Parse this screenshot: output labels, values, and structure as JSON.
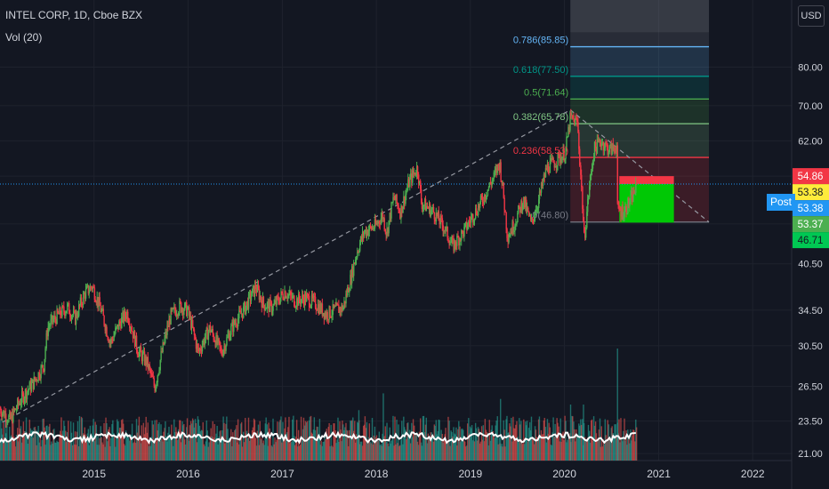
{
  "header": {
    "symbol_line": "INTEL CORP, 1D, Cboe BZX",
    "volume_line": "Vol (20)",
    "currency_button": "USD"
  },
  "post_label": "Post",
  "colors": {
    "background": "#131722",
    "up": "#26a69a",
    "down": "#ef5350",
    "candle_up": "#4caf50",
    "candle_down": "#f23645",
    "volume_ma": "#ffffff",
    "trendline": "#9598a1",
    "fib_0": "#787b86",
    "fib_0236": "#f23645",
    "fib_0382": "#81c784",
    "fib_05": "#4caf50",
    "fib_0618": "#009688",
    "fib_0786": "#64b5f6"
  },
  "fib_levels": [
    {
      "label": "0(46.80)",
      "value": 46.8,
      "color": "#787b86"
    },
    {
      "label": "0.236(58.53)",
      "value": 58.53,
      "color": "#f23645"
    },
    {
      "label": "0.382(65.78)",
      "value": 65.78,
      "color": "#81c784"
    },
    {
      "label": "0.5(71.64)",
      "value": 71.64,
      "color": "#4caf50"
    },
    {
      "label": "0.618(77.50)",
      "value": 77.5,
      "color": "#009688"
    },
    {
      "label": "0.786(85.85)",
      "value": 85.85,
      "color": "#64b5f6"
    }
  ],
  "price_tags": [
    {
      "label": "54.86",
      "value": 54.86,
      "bg": "#f23645",
      "fg": "#ffffff"
    },
    {
      "label": "53.38",
      "value": 53.38,
      "bg": "#ffeb3b",
      "fg": "#131722"
    },
    {
      "label": "53.38",
      "value": 53.38,
      "bg": "#2196f3",
      "fg": "#ffffff",
      "post": true
    },
    {
      "label": "53.37",
      "value": 53.37,
      "bg": "#4caf50",
      "fg": "#ffffff"
    },
    {
      "label": "46.71",
      "value": 46.71,
      "bg": "#00c853",
      "fg": "#131722"
    }
  ],
  "position_box": {
    "entry": 53.38,
    "stop": 54.86,
    "target": 46.71,
    "start": "2020-08-01",
    "end": "2021-03-01"
  },
  "chart_data": {
    "type": "candlestick",
    "title": "INTEL CORP, 1D, Cboe BZX",
    "y_scale": "log",
    "ylim": [
      20.5,
      100
    ],
    "y_ticks": [
      {
        "value": 80,
        "label": "80.00"
      },
      {
        "value": 70,
        "label": "70.00"
      },
      {
        "value": 62,
        "label": "62.00"
      },
      {
        "value": 54.86,
        "label": "54.86"
      },
      {
        "value": 46.5,
        "label": "46.50"
      },
      {
        "value": 40.5,
        "label": "40.50"
      },
      {
        "value": 34.5,
        "label": "34.50"
      },
      {
        "value": 30.5,
        "label": "30.50"
      },
      {
        "value": 26.5,
        "label": "26.50"
      },
      {
        "value": 23.5,
        "label": "23.50"
      },
      {
        "value": 21,
        "label": "21.00"
      }
    ],
    "x_ticks": [
      "2015",
      "2016",
      "2017",
      "2018",
      "2019",
      "2020",
      "2021",
      "2022"
    ],
    "x_range": [
      "2014-01-01",
      "2022-06-01"
    ],
    "last_date": "2020-10-10",
    "price_series": [
      [
        "2014-01-01",
        24.5
      ],
      [
        "2014-02-10",
        23.6
      ],
      [
        "2014-03-25",
        25.4
      ],
      [
        "2014-05-10",
        26.8
      ],
      [
        "2014-06-20",
        28.5
      ],
      [
        "2014-07-05",
        32.5
      ],
      [
        "2014-08-10",
        33.8
      ],
      [
        "2014-09-20",
        34.8
      ],
      [
        "2014-10-20",
        33.5
      ],
      [
        "2014-11-25",
        36.5
      ],
      [
        "2014-12-25",
        37.5
      ],
      [
        "2015-01-25",
        34.8
      ],
      [
        "2015-03-05",
        30.8
      ],
      [
        "2015-04-15",
        33.2
      ],
      [
        "2015-05-10",
        34.2
      ],
      [
        "2015-06-20",
        30.0
      ],
      [
        "2015-07-25",
        28.8
      ],
      [
        "2015-08-25",
        26.4
      ],
      [
        "2015-09-20",
        29.6
      ],
      [
        "2015-10-25",
        33.8
      ],
      [
        "2015-12-01",
        35.0
      ],
      [
        "2015-12-30",
        34.5
      ],
      [
        "2016-02-10",
        29.8
      ],
      [
        "2016-03-25",
        32.4
      ],
      [
        "2016-05-10",
        29.8
      ],
      [
        "2016-06-20",
        32.5
      ],
      [
        "2016-08-10",
        34.8
      ],
      [
        "2016-09-20",
        37.4
      ],
      [
        "2016-10-20",
        35.2
      ],
      [
        "2016-11-25",
        34.8
      ],
      [
        "2017-01-10",
        36.8
      ],
      [
        "2017-02-20",
        35.6
      ],
      [
        "2017-04-01",
        36.0
      ],
      [
        "2017-05-10",
        35.3
      ],
      [
        "2017-06-20",
        34.0
      ],
      [
        "2017-07-25",
        34.5
      ],
      [
        "2017-08-25",
        34.8
      ],
      [
        "2017-09-20",
        38.0
      ],
      [
        "2017-10-20",
        42.5
      ],
      [
        "2017-11-15",
        45.2
      ],
      [
        "2017-12-30",
        46.2
      ],
      [
        "2018-01-25",
        48.0
      ],
      [
        "2018-02-10",
        45.0
      ],
      [
        "2018-03-10",
        51.0
      ],
      [
        "2018-04-05",
        48.5
      ],
      [
        "2018-05-10",
        54.0
      ],
      [
        "2018-06-10",
        56.5
      ],
      [
        "2018-06-25",
        50.0
      ],
      [
        "2018-08-10",
        48.5
      ],
      [
        "2018-09-20",
        46.0
      ],
      [
        "2018-10-25",
        43.0
      ],
      [
        "2018-12-10",
        45.5
      ],
      [
        "2018-12-28",
        46.8
      ],
      [
        "2019-02-10",
        50.0
      ],
      [
        "2019-04-01",
        54.5
      ],
      [
        "2019-04-25",
        57.5
      ],
      [
        "2019-05-25",
        44.5
      ],
      [
        "2019-06-20",
        46.5
      ],
      [
        "2019-07-25",
        50.5
      ],
      [
        "2019-08-25",
        46.5
      ],
      [
        "2019-09-25",
        50.8
      ],
      [
        "2019-10-25",
        56.5
      ],
      [
        "2019-12-05",
        58.0
      ],
      [
        "2020-01-05",
        59.5
      ],
      [
        "2020-01-24",
        67.0
      ],
      [
        "2020-02-20",
        66.0
      ],
      [
        "2020-03-18",
        44.0
      ],
      [
        "2020-04-05",
        52.0
      ],
      [
        "2020-04-25",
        60.0
      ],
      [
        "2020-05-20",
        62.0
      ],
      [
        "2020-06-25",
        60.0
      ],
      [
        "2020-07-22",
        61.0
      ],
      [
        "2020-07-25",
        48.8
      ],
      [
        "2020-08-20",
        48.5
      ],
      [
        "2020-09-20",
        51.0
      ],
      [
        "2020-10-10",
        53.38
      ]
    ],
    "volume_markers": [
      {
        "date": "2015-12-10",
        "relative": 0.35
      },
      {
        "date": "2017-10-25",
        "relative": 0.45
      },
      {
        "date": "2018-01-28",
        "relative": 0.6
      },
      {
        "date": "2019-04-28",
        "relative": 0.55
      },
      {
        "date": "2020-01-25",
        "relative": 0.5
      },
      {
        "date": "2020-03-15",
        "relative": 0.5
      },
      {
        "date": "2020-07-25",
        "relative": 1.0
      }
    ],
    "trendlines": [
      {
        "from": [
          "2014-01-10",
          23.4
        ],
        "to": [
          "2020-01-24",
          69.0
        ]
      },
      {
        "from": [
          "2020-01-24",
          69.0
        ],
        "to": [
          "2021-07-15",
          46.8
        ]
      }
    ]
  }
}
